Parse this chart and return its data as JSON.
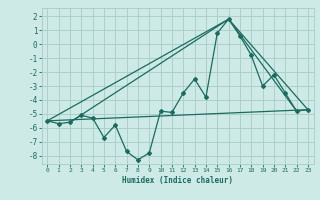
{
  "xlabel": "Humidex (Indice chaleur)",
  "background_color": "#ceeae6",
  "grid_color": "#aed0cc",
  "line_color": "#1a6b60",
  "xlim": [
    -0.5,
    23.5
  ],
  "ylim": [
    -8.6,
    2.6
  ],
  "xticks": [
    0,
    1,
    2,
    3,
    4,
    5,
    6,
    7,
    8,
    9,
    10,
    11,
    12,
    13,
    14,
    15,
    16,
    17,
    18,
    19,
    20,
    21,
    22,
    23
  ],
  "yticks": [
    -8,
    -7,
    -6,
    -5,
    -4,
    -3,
    -2,
    -1,
    0,
    1,
    2
  ],
  "series": [
    [
      0,
      -5.5
    ],
    [
      1,
      -5.7
    ],
    [
      2,
      -5.6
    ],
    [
      3,
      -5.1
    ],
    [
      4,
      -5.3
    ],
    [
      5,
      -6.7
    ],
    [
      6,
      -5.8
    ],
    [
      7,
      -7.7
    ],
    [
      8,
      -8.3
    ],
    [
      9,
      -7.8
    ],
    [
      10,
      -4.8
    ],
    [
      11,
      -4.9
    ],
    [
      12,
      -3.5
    ],
    [
      13,
      -2.5
    ],
    [
      14,
      -3.8
    ],
    [
      15,
      0.8
    ],
    [
      16,
      1.8
    ],
    [
      17,
      0.6
    ],
    [
      18,
      -0.8
    ],
    [
      19,
      -3.0
    ],
    [
      20,
      -2.2
    ],
    [
      21,
      -3.5
    ],
    [
      22,
      -4.8
    ],
    [
      23,
      -4.7
    ]
  ],
  "line2": [
    [
      0,
      -5.5
    ],
    [
      23,
      -4.7
    ]
  ],
  "line3": [
    [
      0,
      -5.5
    ],
    [
      16,
      1.8
    ],
    [
      23,
      -4.7
    ]
  ],
  "line4": [
    [
      2,
      -5.6
    ],
    [
      16,
      1.8
    ],
    [
      22,
      -4.8
    ]
  ]
}
